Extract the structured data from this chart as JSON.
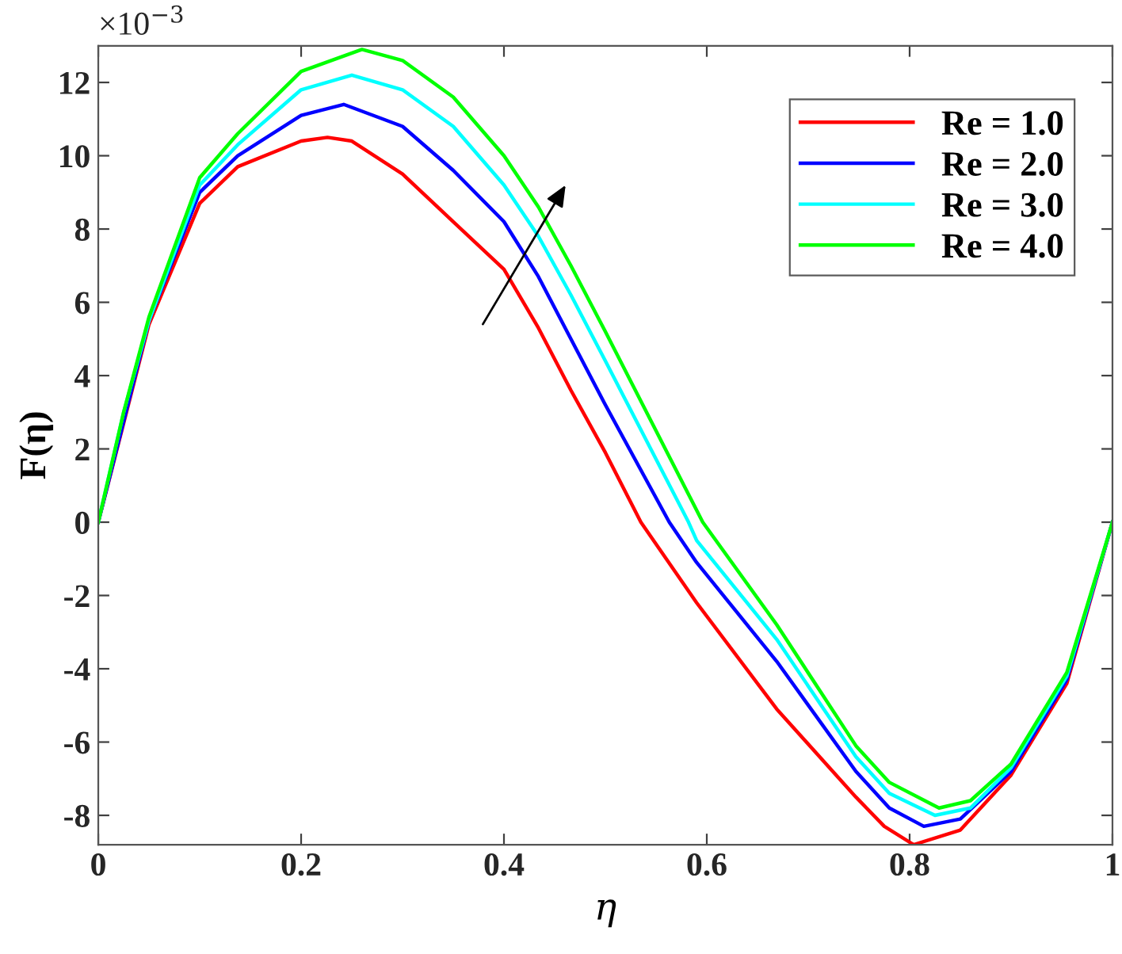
{
  "chart_data": {
    "type": "line",
    "xlabel": "η",
    "ylabel": "F(η)",
    "annotations": [
      "×10$^{−3}$"
    ],
    "xlim": [
      0,
      1
    ],
    "xticks": [
      0,
      0.2,
      0.4,
      0.6,
      0.8,
      1
    ],
    "ylim": [
      -8.8,
      13
    ],
    "yticks": [
      -8,
      -6,
      -4,
      -2,
      0,
      2,
      4,
      6,
      8,
      10,
      12
    ],
    "grid": false,
    "legend": "top right",
    "marker": "none",
    "line_style": "solid",
    "series": [
      {
        "name": "Re = 1.0",
        "color": "#ff0000",
        "x": [
          0,
          0.05,
          0.1,
          0.1375,
          0.2,
          0.226,
          0.25,
          0.3,
          0.35,
          0.4,
          0.434,
          0.466,
          0.5,
          0.535,
          0.59,
          0.669,
          0.747,
          0.775,
          0.804,
          0.85,
          0.9,
          0.955,
          1
        ],
        "values": [
          0,
          5.4,
          8.7,
          9.7,
          10.4,
          10.5,
          10.4,
          9.5,
          8.2,
          6.9,
          5.3,
          3.6,
          1.9,
          0,
          -2.2,
          -5.1,
          -7.5,
          -8.3,
          -8.8,
          -8.4,
          -6.9,
          -4.4,
          0
        ]
      },
      {
        "name": "Re = 2.0",
        "color": "#0000ff",
        "x": [
          0,
          0.05,
          0.1,
          0.1375,
          0.2,
          0.242,
          0.3,
          0.35,
          0.4,
          0.434,
          0.466,
          0.5,
          0.563,
          0.59,
          0.669,
          0.747,
          0.78,
          0.814,
          0.85,
          0.9,
          0.955,
          1
        ],
        "values": [
          0,
          5.5,
          9.0,
          10.0,
          11.1,
          11.4,
          10.8,
          9.6,
          8.2,
          6.7,
          5.0,
          3.2,
          0,
          -1.1,
          -3.8,
          -6.8,
          -7.8,
          -8.3,
          -8.1,
          -6.8,
          -4.3,
          0
        ]
      },
      {
        "name": "Re = 3.0",
        "color": "#00ffff",
        "x": [
          0,
          0.025,
          0.05,
          0.1,
          0.1375,
          0.2,
          0.25,
          0.3,
          0.35,
          0.4,
          0.434,
          0.466,
          0.5,
          0.582,
          0.59,
          0.669,
          0.747,
          0.78,
          0.825,
          0.86,
          0.9,
          0.955,
          1
        ],
        "values": [
          0,
          3.0,
          5.5,
          9.2,
          10.3,
          11.8,
          12.2,
          11.8,
          10.8,
          9.2,
          7.8,
          6.2,
          4.4,
          0,
          -0.5,
          -3.2,
          -6.4,
          -7.4,
          -8.0,
          -7.8,
          -6.7,
          -4.2,
          0
        ]
      },
      {
        "name": "Re = 4.0",
        "color": "#00ff00",
        "x": [
          0,
          0.025,
          0.05,
          0.1,
          0.1375,
          0.2,
          0.26,
          0.3,
          0.35,
          0.4,
          0.434,
          0.466,
          0.5,
          0.596,
          0.669,
          0.747,
          0.78,
          0.829,
          0.86,
          0.9,
          0.955,
          1
        ],
        "values": [
          0,
          3.0,
          5.6,
          9.4,
          10.6,
          12.3,
          12.9,
          12.6,
          11.6,
          10.0,
          8.6,
          7.0,
          5.2,
          0,
          -2.8,
          -6.1,
          -7.1,
          -7.8,
          -7.6,
          -6.6,
          -4.1,
          0
        ]
      }
    ]
  }
}
